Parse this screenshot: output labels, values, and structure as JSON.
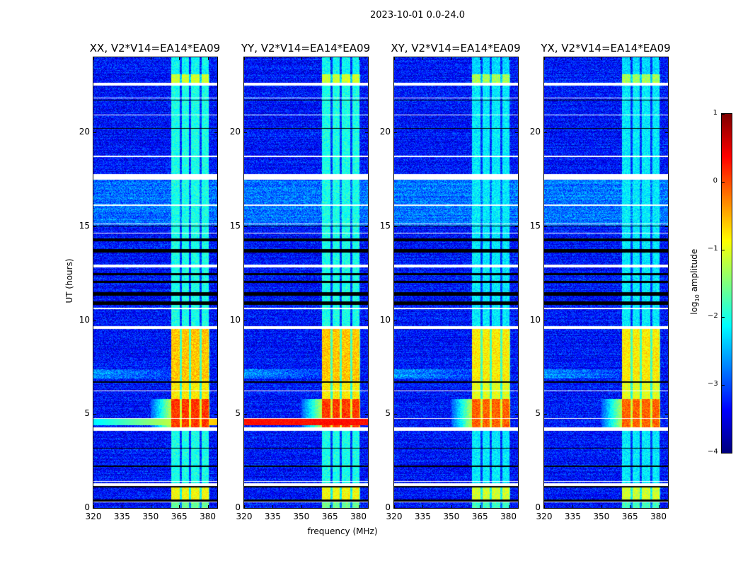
{
  "suptitle": "2023-10-01 0.0-24.0",
  "chart_data": {
    "type": "heatmap",
    "title": "2023-10-01 0.0-24.0",
    "xlabel": "frequency (MHz)",
    "ylabel": "UT (hours)",
    "xlim": [
      320,
      385
    ],
    "ylim": [
      0,
      24
    ],
    "xticks": [
      320,
      335,
      350,
      365,
      380
    ],
    "yticks": [
      0,
      5,
      10,
      15,
      20
    ],
    "panels": [
      {
        "title": "XX, V2*V14=EA14*EA09",
        "pol": "XX"
      },
      {
        "title": "YY, V2*V14=EA14*EA09",
        "pol": "YY"
      },
      {
        "title": "XY, V2*V14=EA14*EA09",
        "pol": "XY"
      },
      {
        "title": "YX, V2*V14=EA14*EA09",
        "pol": "YX"
      }
    ],
    "colorbar": {
      "label": "log",
      "label_sub": "10",
      "label_rest": " amplitude",
      "range": [
        -4,
        1
      ],
      "ticks": [
        1,
        0,
        -1,
        -2,
        -3,
        -4
      ],
      "tick_labels": [
        "1",
        "0",
        "−1",
        "−2",
        "−3",
        "−4"
      ],
      "colormap": "jet"
    },
    "background_log_amp": -3.3,
    "rfi_subbands_mhz": [
      [
        361,
        365.4
      ],
      [
        366.5,
        370
      ],
      [
        371.3,
        375.7
      ],
      [
        376.8,
        380.4
      ]
    ],
    "rfi_time_segments": [
      {
        "t": [
          0,
          0.3
        ],
        "v": -1.6
      },
      {
        "t": [
          0.3,
          1.2
        ],
        "v": -0.9
      },
      {
        "t": [
          1.2,
          4.2
        ],
        "v": -2.0
      },
      {
        "t": [
          4.2,
          5.8
        ],
        "v": 0.1
      },
      {
        "t": [
          5.8,
          6.8
        ],
        "v": -0.8
      },
      {
        "t": [
          6.8,
          9.7
        ],
        "v": -0.6
      },
      {
        "t": [
          9.7,
          22.5
        ],
        "v": -2.0
      },
      {
        "t": [
          22.5,
          23.1
        ],
        "v": -1.1
      },
      {
        "t": [
          23.1,
          24
        ],
        "v": -2.1
      }
    ],
    "flagged_hours": [
      [
        0.3,
        0.35
      ],
      [
        1.15,
        1.3
      ],
      [
        1.4,
        1.45
      ],
      [
        4.1,
        4.3
      ],
      [
        4.75,
        4.8
      ],
      [
        6.2,
        6.25
      ],
      [
        9.55,
        9.7
      ],
      [
        10.6,
        10.65
      ],
      [
        12.8,
        12.95
      ],
      [
        14.6,
        14.65
      ],
      [
        15.1,
        15.15
      ],
      [
        16.1,
        16.15
      ],
      [
        17.5,
        17.8
      ],
      [
        18.7,
        18.75
      ],
      [
        20.9,
        20.95
      ],
      [
        22.5,
        22.65
      ],
      [
        21.8,
        21.85
      ]
    ],
    "dropout_hours": [
      [
        0.35,
        0.45
      ],
      [
        1.1,
        1.15
      ],
      [
        2.2,
        2.25
      ],
      [
        3.15,
        3.2
      ],
      [
        6.65,
        6.75
      ],
      [
        10.8,
        11.0
      ],
      [
        11.3,
        11.5
      ],
      [
        12.0,
        12.1
      ],
      [
        12.4,
        12.5
      ],
      [
        13.6,
        13.8
      ],
      [
        14.2,
        14.35
      ],
      [
        15.0,
        15.05
      ],
      [
        20.2,
        20.25
      ],
      [
        21.7,
        21.75
      ]
    ]
  }
}
